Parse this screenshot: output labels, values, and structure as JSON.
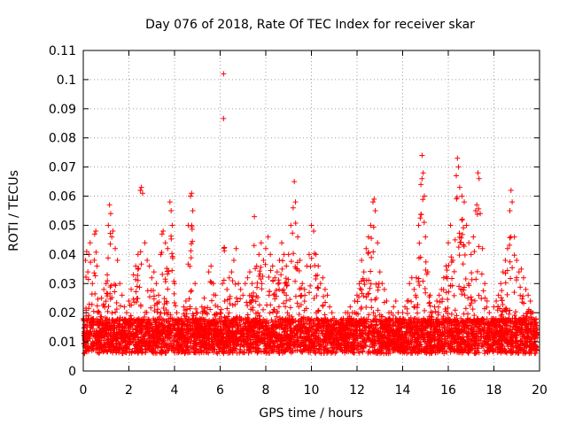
{
  "chart_data": {
    "type": "scatter",
    "title": "Day 076 of 2018, Rate Of TEC Index for receiver skar",
    "xlabel": "GPS time / hours",
    "ylabel": "ROTI / TECUs",
    "xlim": [
      0,
      20
    ],
    "ylim": [
      0,
      0.11
    ],
    "x_ticks": [
      0,
      2,
      4,
      6,
      8,
      10,
      12,
      14,
      16,
      18,
      20
    ],
    "x_tick_labels": [
      "0",
      "2",
      "4",
      "6",
      "8",
      "10",
      "12",
      "14",
      "16",
      "18",
      "20"
    ],
    "y_ticks": [
      0,
      0.01,
      0.02,
      0.03,
      0.04,
      0.05,
      0.06,
      0.07,
      0.08,
      0.09,
      0.1,
      0.11
    ],
    "y_tick_labels": [
      "0",
      "0.01",
      "0.02",
      "0.03",
      "0.04",
      "0.05",
      "0.06",
      "0.07",
      "0.08",
      "0.09",
      "0.1",
      "0.11"
    ],
    "grid": true,
    "marker": "+",
    "color": "#ff0000",
    "series": [
      {
        "name": "ROTI",
        "points": [
          [
            0.05,
            0.012
          ],
          [
            0.1,
            0.038
          ],
          [
            0.15,
            0.041
          ],
          [
            0.2,
            0.034
          ],
          [
            0.25,
            0.04
          ],
          [
            0.3,
            0.044
          ],
          [
            0.4,
            0.03
          ],
          [
            0.5,
            0.047
          ],
          [
            0.55,
            0.048
          ],
          [
            0.6,
            0.036
          ],
          [
            0.7,
            0.02
          ],
          [
            0.8,
            0.025
          ],
          [
            0.9,
            0.028
          ],
          [
            1.0,
            0.03
          ],
          [
            1.05,
            0.033
          ],
          [
            1.1,
            0.05
          ],
          [
            1.15,
            0.057
          ],
          [
            1.2,
            0.054
          ],
          [
            1.25,
            0.046
          ],
          [
            1.3,
            0.048
          ],
          [
            1.4,
            0.042
          ],
          [
            1.5,
            0.038
          ],
          [
            1.6,
            0.03
          ],
          [
            1.7,
            0.026
          ],
          [
            1.8,
            0.022
          ],
          [
            1.9,
            0.02
          ],
          [
            2.0,
            0.024
          ],
          [
            2.1,
            0.028
          ],
          [
            2.2,
            0.033
          ],
          [
            2.3,
            0.036
          ],
          [
            2.4,
            0.04
          ],
          [
            2.5,
            0.062
          ],
          [
            2.55,
            0.063
          ],
          [
            2.6,
            0.061
          ],
          [
            2.7,
            0.044
          ],
          [
            2.8,
            0.038
          ],
          [
            2.9,
            0.036
          ],
          [
            3.0,
            0.032
          ],
          [
            3.1,
            0.034
          ],
          [
            3.2,
            0.03
          ],
          [
            3.3,
            0.026
          ],
          [
            3.4,
            0.04
          ],
          [
            3.45,
            0.047
          ],
          [
            3.5,
            0.048
          ],
          [
            3.6,
            0.044
          ],
          [
            3.7,
            0.042
          ],
          [
            3.8,
            0.058
          ],
          [
            3.85,
            0.055
          ],
          [
            3.9,
            0.05
          ],
          [
            4.0,
            0.03
          ],
          [
            4.1,
            0.02
          ],
          [
            4.2,
            0.016
          ],
          [
            4.3,
            0.018
          ],
          [
            4.4,
            0.022
          ],
          [
            4.5,
            0.024
          ],
          [
            4.6,
            0.05
          ],
          [
            4.7,
            0.06
          ],
          [
            4.75,
            0.061
          ],
          [
            4.8,
            0.055
          ],
          [
            4.9,
            0.03
          ],
          [
            5.0,
            0.02
          ],
          [
            5.1,
            0.018
          ],
          [
            5.2,
            0.022
          ],
          [
            5.3,
            0.025
          ],
          [
            5.4,
            0.02
          ],
          [
            5.5,
            0.034
          ],
          [
            5.6,
            0.036
          ],
          [
            5.7,
            0.03
          ],
          [
            5.8,
            0.026
          ],
          [
            5.9,
            0.022
          ],
          [
            6.0,
            0.02
          ],
          [
            6.1,
            0.03
          ],
          [
            6.15,
            0.102
          ],
          [
            6.2,
            0.024
          ],
          [
            6.3,
            0.028
          ],
          [
            6.4,
            0.032
          ],
          [
            6.5,
            0.034
          ],
          [
            6.6,
            0.038
          ],
          [
            6.7,
            0.042
          ],
          [
            6.8,
            0.03
          ],
          [
            6.9,
            0.028
          ],
          [
            7.0,
            0.026
          ],
          [
            7.1,
            0.03
          ],
          [
            7.2,
            0.032
          ],
          [
            7.3,
            0.034
          ],
          [
            7.4,
            0.03
          ],
          [
            7.5,
            0.053
          ],
          [
            7.6,
            0.036
          ],
          [
            7.7,
            0.04
          ],
          [
            7.8,
            0.044
          ],
          [
            7.9,
            0.038
          ],
          [
            8.0,
            0.042
          ],
          [
            8.1,
            0.046
          ],
          [
            8.2,
            0.04
          ],
          [
            8.3,
            0.036
          ],
          [
            8.4,
            0.032
          ],
          [
            8.5,
            0.034
          ],
          [
            8.6,
            0.038
          ],
          [
            8.7,
            0.044
          ],
          [
            8.8,
            0.04
          ],
          [
            8.9,
            0.036
          ],
          [
            9.0,
            0.04
          ],
          [
            9.1,
            0.05
          ],
          [
            9.2,
            0.056
          ],
          [
            9.25,
            0.065
          ],
          [
            9.3,
            0.058
          ],
          [
            9.4,
            0.046
          ],
          [
            9.5,
            0.038
          ],
          [
            9.6,
            0.03
          ],
          [
            9.7,
            0.028
          ],
          [
            9.8,
            0.036
          ],
          [
            9.9,
            0.04
          ],
          [
            10.0,
            0.05
          ],
          [
            10.1,
            0.048
          ],
          [
            10.2,
            0.04
          ],
          [
            10.3,
            0.036
          ],
          [
            10.4,
            0.03
          ],
          [
            10.5,
            0.032
          ],
          [
            10.6,
            0.028
          ],
          [
            10.7,
            0.026
          ],
          [
            10.8,
            0.022
          ],
          [
            10.9,
            0.02
          ],
          [
            11.0,
            0.018
          ],
          [
            11.1,
            0.016
          ],
          [
            11.2,
            0.014
          ],
          [
            11.3,
            0.016
          ],
          [
            11.4,
            0.018
          ],
          [
            11.5,
            0.02
          ],
          [
            11.6,
            0.02
          ],
          [
            11.7,
            0.022
          ],
          [
            11.8,
            0.02
          ],
          [
            11.9,
            0.024
          ],
          [
            12.0,
            0.026
          ],
          [
            12.1,
            0.03
          ],
          [
            12.2,
            0.038
          ],
          [
            12.3,
            0.034
          ],
          [
            12.4,
            0.042
          ],
          [
            12.5,
            0.046
          ],
          [
            12.6,
            0.05
          ],
          [
            12.7,
            0.058
          ],
          [
            12.75,
            0.059
          ],
          [
            12.8,
            0.055
          ],
          [
            12.9,
            0.044
          ],
          [
            13.0,
            0.034
          ],
          [
            13.1,
            0.03
          ],
          [
            13.2,
            0.028
          ],
          [
            13.3,
            0.024
          ],
          [
            13.4,
            0.02
          ],
          [
            13.5,
            0.02
          ],
          [
            13.6,
            0.022
          ],
          [
            13.7,
            0.024
          ],
          [
            13.8,
            0.02
          ],
          [
            13.9,
            0.018
          ],
          [
            14.0,
            0.02
          ],
          [
            14.1,
            0.022
          ],
          [
            14.2,
            0.024
          ],
          [
            14.3,
            0.03
          ],
          [
            14.4,
            0.032
          ],
          [
            14.5,
            0.028
          ],
          [
            14.6,
            0.032
          ],
          [
            14.7,
            0.05
          ],
          [
            14.8,
            0.064
          ],
          [
            14.85,
            0.074
          ],
          [
            14.9,
            0.068
          ],
          [
            14.95,
            0.06
          ],
          [
            15.0,
            0.046
          ],
          [
            15.1,
            0.034
          ],
          [
            15.2,
            0.026
          ],
          [
            15.3,
            0.02
          ],
          [
            15.4,
            0.022
          ],
          [
            15.5,
            0.024
          ],
          [
            15.6,
            0.026
          ],
          [
            15.7,
            0.028
          ],
          [
            15.8,
            0.032
          ],
          [
            15.9,
            0.036
          ],
          [
            16.0,
            0.044
          ],
          [
            16.1,
            0.05
          ],
          [
            16.2,
            0.038
          ],
          [
            16.3,
            0.045
          ],
          [
            16.35,
            0.067
          ],
          [
            16.4,
            0.073
          ],
          [
            16.45,
            0.07
          ],
          [
            16.5,
            0.063
          ],
          [
            16.6,
            0.06
          ],
          [
            16.7,
            0.058
          ],
          [
            16.8,
            0.05
          ],
          [
            16.9,
            0.044
          ],
          [
            17.0,
            0.04
          ],
          [
            17.1,
            0.046
          ],
          [
            17.2,
            0.055
          ],
          [
            17.25,
            0.057
          ],
          [
            17.3,
            0.068
          ],
          [
            17.35,
            0.066
          ],
          [
            17.4,
            0.054
          ],
          [
            17.5,
            0.042
          ],
          [
            17.6,
            0.03
          ],
          [
            17.7,
            0.024
          ],
          [
            17.8,
            0.02
          ],
          [
            17.9,
            0.018
          ],
          [
            18.0,
            0.022
          ],
          [
            18.1,
            0.024
          ],
          [
            18.2,
            0.026
          ],
          [
            18.3,
            0.03
          ],
          [
            18.4,
            0.034
          ],
          [
            18.5,
            0.038
          ],
          [
            18.6,
            0.042
          ],
          [
            18.7,
            0.055
          ],
          [
            18.75,
            0.062
          ],
          [
            18.8,
            0.058
          ],
          [
            18.9,
            0.046
          ],
          [
            19.0,
            0.038
          ],
          [
            19.1,
            0.034
          ],
          [
            19.2,
            0.035
          ],
          [
            19.3,
            0.032
          ],
          [
            19.4,
            0.028
          ],
          [
            19.5,
            0.026
          ],
          [
            19.6,
            0.024
          ],
          [
            19.7,
            0.02
          ],
          [
            19.8,
            0.016
          ],
          [
            19.9,
            0.014
          ]
        ]
      }
    ]
  }
}
